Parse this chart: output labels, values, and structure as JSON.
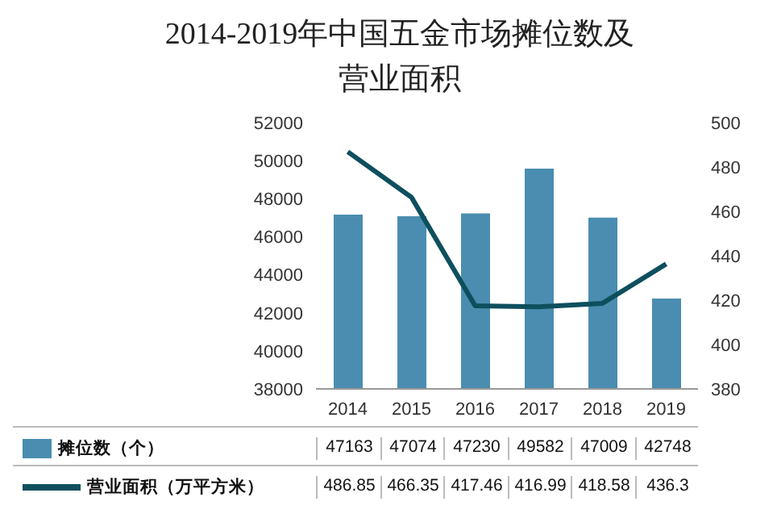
{
  "chart_data": {
    "type": "bar",
    "title": "2014-2019年中国五金市场摊位数及营业面积",
    "categories": [
      "2014",
      "2015",
      "2016",
      "2017",
      "2018",
      "2019"
    ],
    "series": [
      {
        "name": "摊位数（个）",
        "color": "#4a8db0",
        "values": [
          47163,
          47074,
          47230,
          49582,
          47009,
          42748
        ]
      },
      {
        "name": "营业面积（万平方米）",
        "type": "line",
        "axis": "y2",
        "color": "#0e4f5e",
        "values": [
          486.85,
          466.35,
          417.46,
          416.99,
          418.58,
          436.3
        ]
      }
    ],
    "ylim": [
      38000,
      52000
    ],
    "yticks": [
      38000,
      40000,
      42000,
      44000,
      46000,
      48000,
      50000,
      52000
    ],
    "y2lim": [
      380,
      500
    ],
    "y2ticks": [
      380,
      400,
      420,
      440,
      460,
      480,
      500
    ],
    "data_labels": true,
    "legend": "bottom",
    "marker": "none"
  }
}
